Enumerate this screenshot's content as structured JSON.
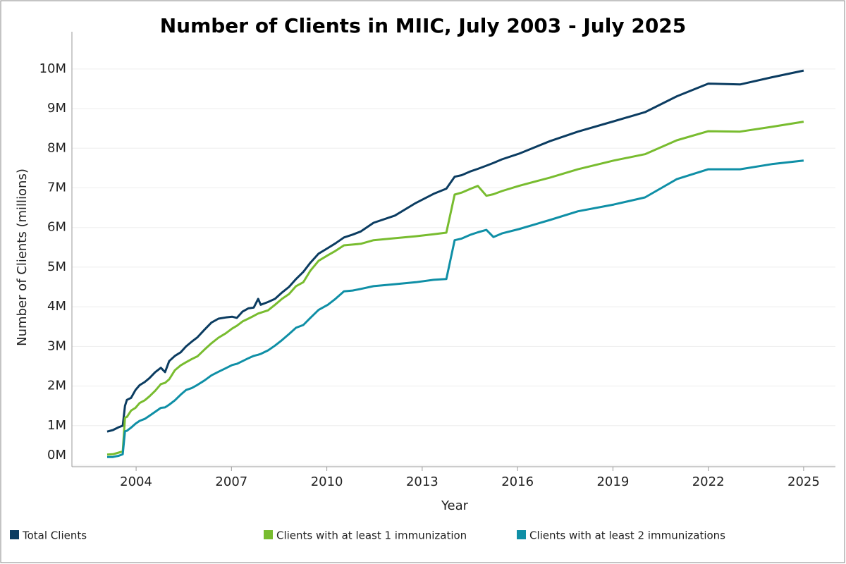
{
  "chart_data": {
    "type": "line",
    "title": "Number of Clients in MIIC, July 2003 - July 2025",
    "x_label": "Year",
    "y_label": "Number of Clients (millions)",
    "x": [
      2003.59,
      2003.77,
      2003.95,
      2004.08,
      2004.15,
      2004.21,
      2004.34,
      2004.48,
      2004.61,
      2004.77,
      2004.92,
      2005.1,
      2005.28,
      2005.41,
      2005.54,
      2005.72,
      2005.9,
      2006.07,
      2006.25,
      2006.43,
      2006.65,
      2006.87,
      2007.09,
      2007.32,
      2007.52,
      2007.67,
      2007.85,
      2008.03,
      2008.2,
      2008.34,
      2008.42,
      2008.65,
      2008.87,
      2009.09,
      2009.31,
      2009.53,
      2009.76,
      2009.98,
      2010.24,
      2010.53,
      2010.77,
      2011.04,
      2011.31,
      2011.57,
      2011.97,
      2012.64,
      2013.3,
      2013.86,
      2014.26,
      2014.52,
      2014.74,
      2015.03,
      2015.25,
      2015.52,
      2015.74,
      2016.01,
      2016.54,
      2017.52,
      2018.4,
      2019.53,
      2020.51,
      2021.51,
      2022.5,
      2023.5,
      2024.5,
      2025.5
    ],
    "series": [
      {
        "name": "Total Clients",
        "color": "#0b3c61",
        "values": [
          0.85,
          0.89,
          0.96,
          1.0,
          1.5,
          1.65,
          1.7,
          1.9,
          2.02,
          2.1,
          2.2,
          2.35,
          2.46,
          2.35,
          2.63,
          2.76,
          2.85,
          3.0,
          3.12,
          3.23,
          3.42,
          3.6,
          3.7,
          3.73,
          3.75,
          3.72,
          3.88,
          3.96,
          3.98,
          4.2,
          4.05,
          4.12,
          4.2,
          4.36,
          4.5,
          4.7,
          4.88,
          5.11,
          5.34,
          5.48,
          5.6,
          5.75,
          5.82,
          5.9,
          6.12,
          6.3,
          6.62,
          6.85,
          6.98,
          7.28,
          7.32,
          7.42,
          7.48,
          7.56,
          7.63,
          7.72,
          7.86,
          8.18,
          8.42,
          8.68,
          8.91,
          9.31,
          9.63,
          9.61,
          9.79,
          9.96
        ]
      },
      {
        "name": "Clients with at least 1 immunization",
        "color": "#78bc2f",
        "values": [
          0.27,
          0.28,
          0.32,
          0.35,
          1.2,
          1.22,
          1.38,
          1.45,
          1.57,
          1.64,
          1.74,
          1.88,
          2.05,
          2.08,
          2.17,
          2.4,
          2.52,
          2.6,
          2.68,
          2.75,
          2.92,
          3.08,
          3.22,
          3.33,
          3.45,
          3.52,
          3.63,
          3.7,
          3.77,
          3.83,
          3.85,
          3.91,
          4.05,
          4.2,
          4.32,
          4.52,
          4.62,
          4.91,
          5.16,
          5.3,
          5.41,
          5.55,
          5.57,
          5.59,
          5.68,
          5.73,
          5.78,
          5.83,
          5.87,
          6.83,
          6.88,
          6.98,
          7.05,
          6.8,
          6.84,
          6.92,
          7.05,
          7.26,
          7.47,
          7.69,
          7.85,
          8.2,
          8.43,
          8.42,
          8.54,
          8.67
        ]
      },
      {
        "name": "Clients with at least 2 immunizations",
        "color": "#0f8fa6",
        "values": [
          0.21,
          0.21,
          0.24,
          0.28,
          0.86,
          0.87,
          0.95,
          1.05,
          1.12,
          1.17,
          1.25,
          1.35,
          1.45,
          1.46,
          1.53,
          1.64,
          1.78,
          1.9,
          1.95,
          2.03,
          2.14,
          2.27,
          2.36,
          2.45,
          2.53,
          2.56,
          2.63,
          2.7,
          2.76,
          2.79,
          2.81,
          2.9,
          3.02,
          3.16,
          3.31,
          3.47,
          3.54,
          3.72,
          3.92,
          4.05,
          4.2,
          4.39,
          4.41,
          4.45,
          4.52,
          4.57,
          4.62,
          4.68,
          4.7,
          5.68,
          5.72,
          5.82,
          5.88,
          5.94,
          5.76,
          5.85,
          5.96,
          6.19,
          6.41,
          6.58,
          6.76,
          7.22,
          7.47,
          7.47,
          7.6,
          7.69
        ]
      }
    ],
    "xlim": [
      2002.48,
      2026.5
    ],
    "xticks": [
      {
        "value": 2004.5,
        "label": "2004"
      },
      {
        "value": 2007.5,
        "label": "2007"
      },
      {
        "value": 2010.5,
        "label": "2010"
      },
      {
        "value": 2013.5,
        "label": "2013"
      },
      {
        "value": 2016.5,
        "label": "2016"
      },
      {
        "value": 2019.5,
        "label": "2019"
      },
      {
        "value": 2022.5,
        "label": "2022"
      },
      {
        "value": 2025.5,
        "label": "2025"
      }
    ],
    "ylim": [
      0,
      10.94
    ],
    "yticks": [
      {
        "value": 0,
        "label": "0M"
      },
      {
        "value": 1,
        "label": "1M"
      },
      {
        "value": 2,
        "label": "2M"
      },
      {
        "value": 3,
        "label": "3M"
      },
      {
        "value": 4,
        "label": "4M"
      },
      {
        "value": 5,
        "label": "5M"
      },
      {
        "value": 6,
        "label": "6M"
      },
      {
        "value": 7,
        "label": "7M"
      },
      {
        "value": 8,
        "label": "8M"
      },
      {
        "value": 9,
        "label": "9M"
      },
      {
        "value": 10,
        "label": "10M"
      }
    ],
    "grid": true,
    "legend": "bottom"
  }
}
